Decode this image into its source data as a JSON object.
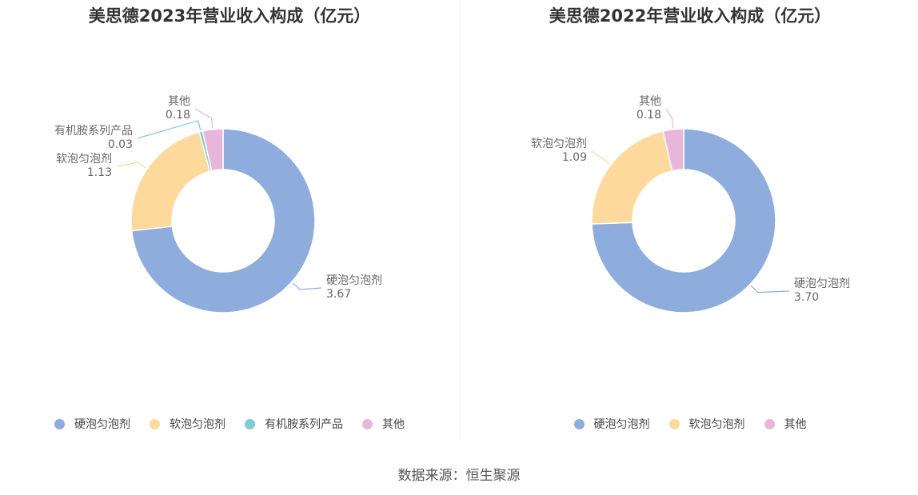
{
  "chart_data": [
    {
      "type": "pie",
      "title": "美思德2023年营业收入构成（亿元）",
      "slices": [
        {
          "name": "硬泡匀泡剂",
          "value": 3.67,
          "color": "#8eaddc"
        },
        {
          "name": "软泡匀泡剂",
          "value": 1.13,
          "color": "#fdd99b"
        },
        {
          "name": "有机胺系列产品",
          "value": 0.03,
          "color": "#7dcfd4"
        },
        {
          "name": "其他",
          "value": 0.18,
          "color": "#e8b6da"
        }
      ],
      "legend": "bottom"
    },
    {
      "type": "pie",
      "title": "美思德2022年营业收入构成（亿元）",
      "slices": [
        {
          "name": "硬泡匀泡剂",
          "value": 3.7,
          "color": "#8eaddc"
        },
        {
          "name": "软泡匀泡剂",
          "value": 1.09,
          "color": "#fdd99b"
        },
        {
          "name": "其他",
          "value": 0.18,
          "color": "#e8b6da"
        }
      ],
      "legend": "bottom"
    }
  ],
  "footer": {
    "source": "数据来源：恒生聚源"
  }
}
